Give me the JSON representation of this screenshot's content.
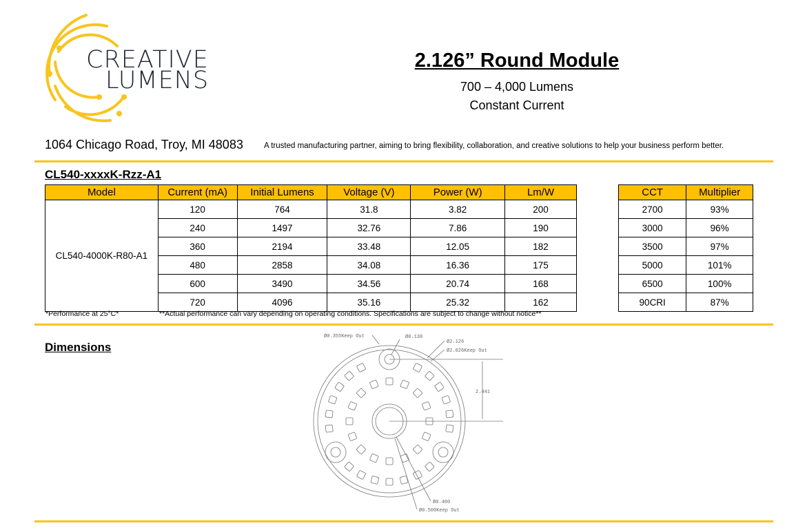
{
  "brand": {
    "line1": "CREATIVE",
    "line2": "LUMENS",
    "color": "#F7C51E"
  },
  "header": {
    "title": "2.126” Round Module",
    "subtitle1": "700 – 4,000 Lumens",
    "subtitle2": "Constant Current"
  },
  "address": "1064 Chicago Road, Troy, MI 48083",
  "tagline": "A trusted manufacturing partner, aiming to bring flexibility, collaboration, and creative solutions to help your business perform better.",
  "part_number": "CL540-xxxxK-Rzz-A1",
  "spec_table": {
    "headers": [
      "Model",
      "Current (mA)",
      "Initial Lumens",
      "Voltage (V)",
      "Power (W)",
      "Lm/W"
    ],
    "model": "CL540-4000K-R80-A1",
    "rows": [
      [
        "120",
        "764",
        "31.8",
        "3.82",
        "200"
      ],
      [
        "240",
        "1497",
        "32.76",
        "7.86",
        "190"
      ],
      [
        "360",
        "2194",
        "33.48",
        "12.05",
        "182"
      ],
      [
        "480",
        "2858",
        "34.08",
        "16.36",
        "175"
      ],
      [
        "600",
        "3490",
        "34.56",
        "20.74",
        "168"
      ],
      [
        "720",
        "4096",
        "35.16",
        "25.32",
        "162"
      ]
    ]
  },
  "cct_table": {
    "headers": [
      "CCT",
      "Multiplier"
    ],
    "rows": [
      [
        "2700",
        "93%"
      ],
      [
        "3000",
        "96%"
      ],
      [
        "3500",
        "97%"
      ],
      [
        "5000",
        "101%"
      ],
      [
        "6500",
        "100%"
      ],
      [
        "90CRI",
        "87%"
      ]
    ]
  },
  "notes": {
    "left": "*Performance at 25°C*",
    "right": "**Actual performance can vary  depending on operating conditions. Specifications are subject to change without notice**"
  },
  "dimensions": {
    "heading": "Dimensions",
    "labels": {
      "keepout_355": "Ø0.355Keep Out",
      "hole": "Ø0.138",
      "outer": "Ø2.126",
      "keepout_2026": "Ø2.026Keep Out",
      "offset": "2.441",
      "center": "Ø0.400",
      "keepout_500": "Ø0.500Keep Out"
    }
  }
}
